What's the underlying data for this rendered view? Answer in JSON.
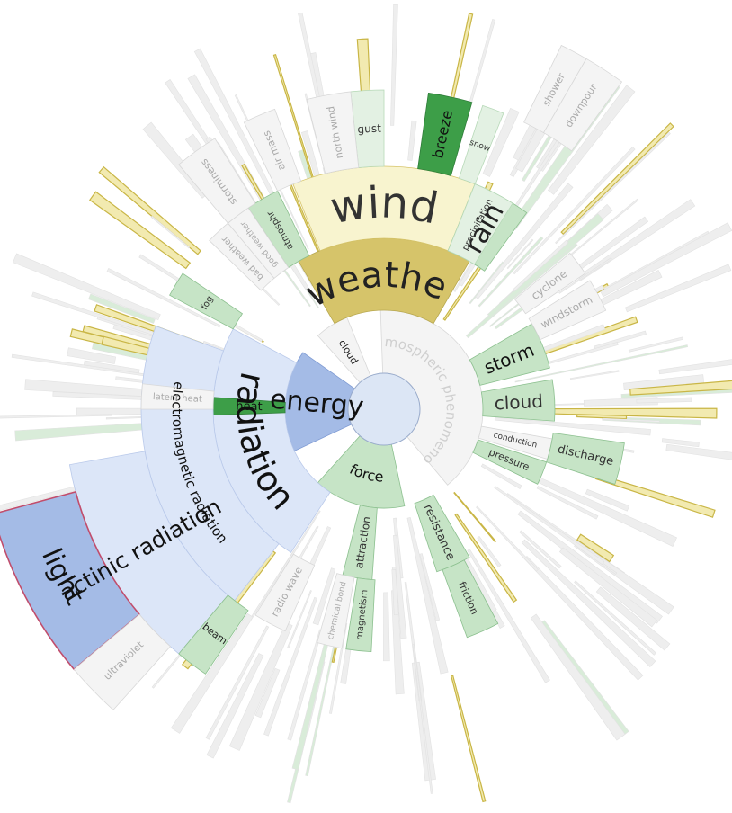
{
  "center": {
    "fill": "#dce6f5",
    "stroke": "#9aaccc"
  },
  "colors": {
    "blue_dark": "#a4bbe6",
    "blue_light": "#dce6f8",
    "olive": "#d6c46a",
    "cream": "#f8f4cf",
    "green_med": "#c6e4c6",
    "green_light": "#e3f1e3",
    "green_dark": "#3d9e48",
    "grey": "#ededed",
    "highlight_stroke": "#c14d6c"
  },
  "nodes": [
    {
      "id": "atmospheric-phenomenon",
      "label": "atmospheric phenomenon",
      "level": 1,
      "start": -2,
      "end": 140,
      "style": "light",
      "size": 15,
      "text_color": "#cfcfcf"
    },
    {
      "id": "energy",
      "label": "energy",
      "level": 1,
      "start": 245,
      "end": 305,
      "style": "blue",
      "size": 30,
      "text_color": "#111111"
    },
    {
      "id": "force",
      "label": "force",
      "level": 1,
      "start": 168,
      "end": 222,
      "style": "green",
      "size": 16,
      "text_color": "#111111"
    },
    {
      "id": "cloud-inner",
      "label": "cloud",
      "level": 1,
      "start": 318,
      "end": 338,
      "style": "light",
      "size": 11,
      "text_color": "#222222"
    },
    {
      "id": "weather",
      "label": "weather",
      "level": 2,
      "start": -30,
      "end": 30,
      "style": "olive",
      "size": 40,
      "text_color": "#222222"
    },
    {
      "id": "radiation",
      "label": "radiation",
      "level": 2,
      "start": 213,
      "end": 298,
      "style": "blue_light",
      "size": 38,
      "text_color": "#111111"
    },
    {
      "id": "storm",
      "label": "storm",
      "level": 2,
      "start": 60,
      "end": 76,
      "style": "green",
      "size": 20,
      "text_color": "#111111"
    },
    {
      "id": "cloud",
      "label": "cloud",
      "level": 2,
      "start": 80,
      "end": 94,
      "style": "green",
      "size": 20,
      "text_color": "#333333"
    },
    {
      "id": "conduction",
      "label": "conduction",
      "level": 2,
      "start": 100,
      "end": 107,
      "style": "light",
      "size": 9,
      "text_color": "#333333"
    },
    {
      "id": "pressure",
      "label": "pressure",
      "level": 2,
      "start": 108,
      "end": 116,
      "style": "green",
      "size": 11,
      "text_color": "#333333"
    },
    {
      "id": "resistance",
      "label": "resistance",
      "level": 2,
      "start": 150,
      "end": 162,
      "style": "green",
      "size": 13,
      "text_color": "#333333"
    },
    {
      "id": "attraction",
      "label": "attraction",
      "level": 2,
      "start": 184,
      "end": 194,
      "style": "green",
      "size": 12,
      "text_color": "#333333"
    },
    {
      "id": "heat",
      "label": "heat",
      "level": 2,
      "start": 268,
      "end": 274,
      "style": "green_dark",
      "size": 13,
      "text_color": "#111111"
    },
    {
      "id": "wind",
      "label": "wind",
      "level": 3,
      "start": -22,
      "end": 22,
      "style": "cream",
      "size": 48,
      "text_color": "#333333"
    },
    {
      "id": "rain",
      "label": "rain",
      "level": 3,
      "start": 22,
      "end": 36,
      "style": "green",
      "size": 30,
      "text_color": "#222222"
    },
    {
      "id": "precipitation",
      "label": "precipitation",
      "level": 3,
      "start": 22,
      "end": 32,
      "style": "green_light",
      "size": 10,
      "text_color": "#333333"
    },
    {
      "id": "windstorm",
      "label": "windstorm",
      "level": 3,
      "start": 58,
      "end": 66,
      "style": "light",
      "size": 12,
      "text_color": "#aaaaaa"
    },
    {
      "id": "cyclone",
      "label": "cyclone",
      "level": 3,
      "start": 50,
      "end": 56,
      "style": "light",
      "size": 12,
      "text_color": "#aaaaaa"
    },
    {
      "id": "discharge",
      "label": "discharge",
      "level": 3,
      "start": 98,
      "end": 108,
      "style": "green",
      "size": 13,
      "text_color": "#333333"
    },
    {
      "id": "friction",
      "label": "friction",
      "level": 3,
      "start": 152,
      "end": 160,
      "style": "green",
      "size": 11,
      "text_color": "#333333"
    },
    {
      "id": "magnetism",
      "label": "magnetism",
      "level": 3,
      "start": 183,
      "end": 189,
      "style": "green",
      "size": 10,
      "text_color": "#333333"
    },
    {
      "id": "chemical-bond",
      "label": "chemical bond",
      "level": 3,
      "start": 190,
      "end": 196,
      "style": "light",
      "size": 9,
      "text_color": "#aaaaaa"
    },
    {
      "id": "electromagnetic-radiation",
      "label": "electromagnetic radiation",
      "level": 3,
      "start": 218,
      "end": 290,
      "style": "blue_light",
      "size": 15,
      "text_color": "#111111"
    },
    {
      "id": "radio-wave",
      "label": "radio wave",
      "level": 3,
      "start": 204,
      "end": 212,
      "style": "light",
      "size": 11,
      "text_color": "#aaaaaa"
    },
    {
      "id": "latent-heat",
      "label": "latent heat",
      "level": 3,
      "start": 270,
      "end": 276,
      "style": "light",
      "size": 10,
      "text_color": "#aaaaaa"
    },
    {
      "id": "atmosphere",
      "label": "atmosphr",
      "level": 3,
      "start": -34,
      "end": -26,
      "style": "green",
      "size": 10,
      "text_color": "#333333"
    },
    {
      "id": "good-weather",
      "label": "good weather",
      "level": 3,
      "start": -40,
      "end": -34,
      "style": "light",
      "size": 9,
      "text_color": "#aaaaaa"
    },
    {
      "id": "bad-weather",
      "label": "bad weather",
      "level": 3,
      "start": -46,
      "end": -40,
      "style": "light",
      "size": 10,
      "text_color": "#aaaaaa"
    },
    {
      "id": "fog",
      "label": "fog",
      "level": 3,
      "start": -62,
      "end": -56,
      "style": "green",
      "size": 10,
      "text_color": "#333333"
    },
    {
      "id": "actinic-radiation",
      "label": "actinic radiation",
      "level": 4,
      "start": 220,
      "end": 260,
      "style": "blue_light",
      "size": 25,
      "text_color": "#111111"
    },
    {
      "id": "beam",
      "label": "beam",
      "level": 4,
      "start": 214,
      "end": 220,
      "style": "green",
      "size": 11,
      "text_color": "#222222"
    },
    {
      "id": "gust",
      "label": "gust",
      "level": 4,
      "start": -6,
      "end": 0,
      "style": "green_light",
      "size": 12,
      "text_color": "#333333"
    },
    {
      "id": "breeze",
      "label": "breeze",
      "level": 4,
      "start": 8,
      "end": 16,
      "style": "green_dark",
      "size": 16,
      "text_color": "#111111"
    },
    {
      "id": "snow",
      "label": "snow",
      "level": 4,
      "start": 18,
      "end": 22,
      "style": "green_light",
      "size": 9,
      "text_color": "#333333"
    },
    {
      "id": "north-wind",
      "label": "north wind",
      "level": 4,
      "start": -14,
      "end": -6,
      "style": "light",
      "size": 11,
      "text_color": "#aaaaaa"
    },
    {
      "id": "stormy",
      "label": "storminess",
      "level": 4,
      "start": -40,
      "end": -32,
      "style": "light",
      "size": 11,
      "text_color": "#aaaaaa"
    },
    {
      "id": "air-mass",
      "label": "air mass",
      "level": 4,
      "start": -26,
      "end": -20,
      "style": "light",
      "size": 11,
      "text_color": "#aaaaaa"
    },
    {
      "id": "light",
      "label": "light",
      "level": 5,
      "start": 230,
      "end": 255,
      "style": "blue",
      "size": 30,
      "text_color": "#111111",
      "highlight": true
    },
    {
      "id": "ultraviolet",
      "label": "ultraviolet",
      "level": 5,
      "start": 222,
      "end": 230,
      "style": "light",
      "size": 11,
      "text_color": "#aaaaaa"
    },
    {
      "id": "shower",
      "label": "shower",
      "level": 5,
      "start": 26,
      "end": 30,
      "style": "light",
      "size": 11,
      "text_color": "#aaaaaa"
    },
    {
      "id": "downpour",
      "label": "downpour",
      "level": 5,
      "start": 30,
      "end": 36,
      "style": "light",
      "size": 11,
      "text_color": "#aaaaaa"
    }
  ]
}
